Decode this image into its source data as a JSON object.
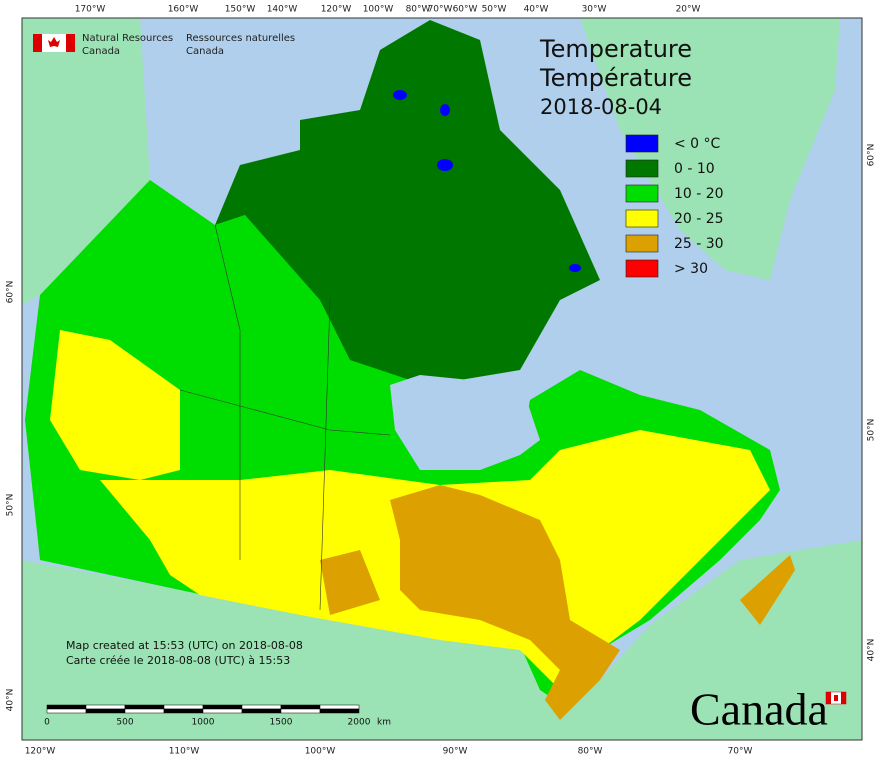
{
  "header": {
    "org_en": [
      "Natural Resources",
      "Canada"
    ],
    "org_fr": [
      "Ressources naturelles",
      "Canada"
    ]
  },
  "title": {
    "en": "Temperature",
    "fr": "Température",
    "date": "2018-08-04"
  },
  "legend": [
    {
      "label": "< 0 °C",
      "color": "#0000ff"
    },
    {
      "label": "0 - 10",
      "color": "#007800"
    },
    {
      "label": "10 - 20",
      "color": "#00dd00"
    },
    {
      "label": "20 - 25",
      "color": "#ffff00"
    },
    {
      "label": "25 - 30",
      "color": "#dca000"
    },
    {
      "label": "> 30",
      "color": "#ff0000"
    }
  ],
  "graticule": {
    "top": [
      "170°W",
      "160°W",
      "150°W",
      "140°W",
      "120°W",
      "100°W",
      "80°W",
      "70°W",
      "60°W",
      "50°W",
      "40°W",
      "30°W",
      "20°W"
    ],
    "bottom": [
      "120°W",
      "110°W",
      "100°W",
      "90°W",
      "80°W",
      "70°W"
    ],
    "left": [
      "60°N",
      "50°N",
      "40°N"
    ],
    "right": [
      "60°N",
      "50°N",
      "40°N"
    ]
  },
  "credits": [
    "Map created at 15:53 (UTC) on 2018-08-08",
    "Carte créée le 2018-08-08 (UTC) à 15:53"
  ],
  "scale_bar": {
    "labels": [
      "0",
      "500",
      "1000",
      "1500",
      "2000"
    ],
    "unit": "km"
  },
  "wordmark": "Canada"
}
